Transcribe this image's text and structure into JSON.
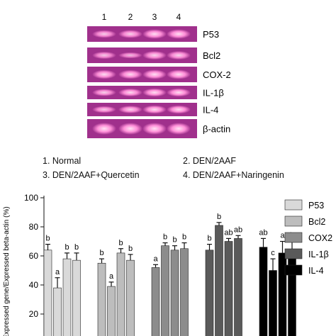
{
  "gel": {
    "lane_numbers": [
      "1",
      "2",
      "3",
      "4"
    ],
    "bands": [
      {
        "label": "P53",
        "intensity": [
          0.75,
          0.8,
          0.95,
          0.95
        ]
      },
      {
        "label": "Bcl2",
        "intensity": [
          0.7,
          0.55,
          0.85,
          0.85
        ]
      },
      {
        "label": "COX-2",
        "intensity": [
          0.9,
          0.9,
          0.95,
          0.95
        ]
      },
      {
        "label": "IL-1β",
        "intensity": [
          0.8,
          0.9,
          0.95,
          0.95
        ]
      },
      {
        "label": "IL-4",
        "intensity": [
          0.75,
          0.85,
          0.95,
          0.95
        ]
      },
      {
        "label": "β-actin",
        "intensity": [
          1.0,
          1.0,
          1.0,
          1.0
        ]
      }
    ],
    "colors": {
      "lane_bg": "#a0308c",
      "band": "#ff8fd8",
      "band_core": "#ffe4f4"
    }
  },
  "lane_legend": {
    "items": [
      "1. Normal",
      "2. DEN/2AAF",
      "3. DEN/2AAF+Quercetin",
      "4. DEN/2AAF+Naringenin"
    ]
  },
  "chart_data": {
    "type": "bar",
    "ylabel": "Expressed gene/Expressed beta-actin (%)",
    "ylim": [
      0,
      100
    ],
    "yticks": [
      "20",
      "40",
      "60",
      "80",
      "100"
    ],
    "grid": false,
    "legend_position": "right",
    "groups": [
      {
        "name": "P53",
        "color": "#d9d9d9",
        "values": [
          64,
          38,
          58,
          57
        ],
        "errors": [
          4,
          7,
          4,
          5
        ],
        "letters": [
          "b",
          "a",
          "b",
          "b"
        ]
      },
      {
        "name": "Bcl2",
        "color": "#bdbdbd",
        "values": [
          55,
          39,
          62,
          57
        ],
        "errors": [
          3,
          3,
          3,
          4
        ],
        "letters": [
          "b",
          "a",
          "b",
          "b"
        ]
      },
      {
        "name": "COX2",
        "color": "#8c8c8c",
        "values": [
          52,
          67,
          64,
          65
        ],
        "errors": [
          2,
          2,
          3,
          4
        ],
        "letters": [
          "a",
          "b",
          "b",
          "b"
        ]
      },
      {
        "name": "IL-1β",
        "color": "#5a5a5a",
        "values": [
          64,
          81,
          70,
          72
        ],
        "errors": [
          4,
          2,
          2,
          2
        ],
        "letters": [
          "b",
          "b",
          "ab",
          "ab"
        ]
      },
      {
        "name": "IL-4",
        "color": "#000000",
        "values": [
          66,
          50,
          62,
          64
        ],
        "errors": [
          6,
          8,
          8,
          6
        ],
        "letters": [
          "ab",
          "c",
          "a",
          "b"
        ]
      }
    ]
  }
}
